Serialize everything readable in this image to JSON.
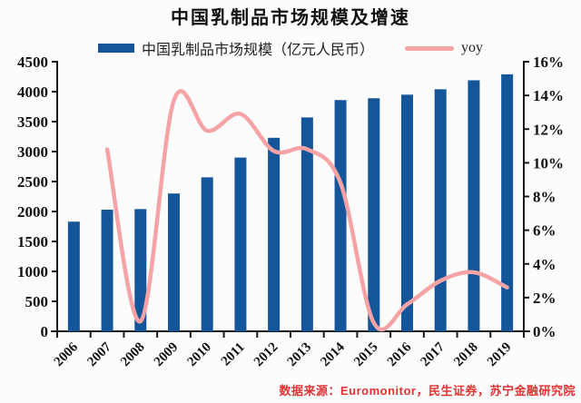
{
  "title": "中国乳制品市场规模及增速",
  "source": "数据来源：Euromonitor，民生证券，苏宁金融研究院",
  "colors": {
    "bar": "#15569B",
    "line": "#F6A3A6",
    "axis": "#1A1A1A",
    "label": "#111111",
    "source_text": "#E23333",
    "background": "#FCFCFC"
  },
  "legend": {
    "items": [
      {
        "label": "中国乳制品市场规模（亿元人民币）",
        "type": "bar"
      },
      {
        "label": "yoy",
        "type": "line"
      }
    ]
  },
  "chart_data": {
    "type": "bar",
    "title": "中国乳制品市场规模及增速",
    "categories": [
      "2006",
      "2007",
      "2008",
      "2009",
      "2010",
      "2011",
      "2012",
      "2013",
      "2014",
      "2015",
      "2016",
      "2017",
      "2018",
      "2019"
    ],
    "series": [
      {
        "name": "中国乳制品市场规模（亿元人民币）",
        "type": "bar",
        "axis": "left",
        "values": [
          1830,
          2030,
          2040,
          2300,
          2570,
          2900,
          3230,
          3570,
          3860,
          3890,
          3950,
          4040,
          4190,
          4290
        ]
      },
      {
        "name": "yoy",
        "type": "line",
        "axis": "right",
        "values": [
          null,
          10.8,
          0.6,
          13.7,
          11.9,
          12.9,
          10.7,
          10.8,
          8.8,
          0.5,
          1.6,
          3.0,
          3.5,
          2.6
        ]
      }
    ],
    "left_axis": {
      "min": 0,
      "max": 4500,
      "step": 500,
      "tick_labels": [
        "0",
        "500",
        "1000",
        "1500",
        "2000",
        "2500",
        "3000",
        "3500",
        "4000",
        "4500"
      ]
    },
    "right_axis": {
      "min": 0,
      "max": 16,
      "step": 2,
      "tick_labels": [
        "0%",
        "2%",
        "4%",
        "6%",
        "8%",
        "10%",
        "12%",
        "14%",
        "16%"
      ]
    },
    "grid": false,
    "legend_position": "top",
    "xlabel": "",
    "ylabel": ""
  }
}
